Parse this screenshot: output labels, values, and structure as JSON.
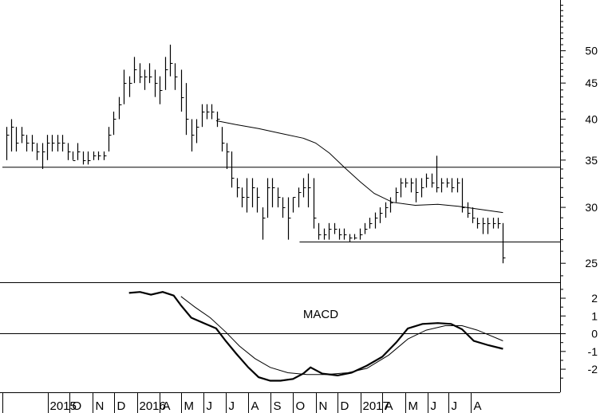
{
  "chart_data": [
    {
      "type": "ohlc",
      "title": "",
      "y_scale": "log",
      "ylim": [
        23.5,
        59
      ],
      "y_ticks": [
        25,
        30,
        35,
        40,
        45,
        50
      ],
      "x_start": "2015-07-01",
      "x_end": "2017-08-01",
      "weekly_hlc": [
        [
          "2015-07-06",
          39,
          35,
          38
        ],
        [
          "2015-07-13",
          40,
          36,
          39
        ],
        [
          "2015-07-20",
          39,
          36,
          37
        ],
        [
          "2015-07-27",
          39,
          37,
          38
        ],
        [
          "2015-08-03",
          38,
          36,
          37
        ],
        [
          "2015-08-10",
          38,
          36,
          37
        ],
        [
          "2015-08-17",
          37,
          35,
          36
        ],
        [
          "2015-08-24",
          37,
          34,
          36
        ],
        [
          "2015-08-31",
          38,
          35,
          37
        ],
        [
          "2015-09-07",
          38,
          36,
          37
        ],
        [
          "2015-09-14",
          38,
          36,
          37
        ],
        [
          "2015-09-21",
          38,
          36,
          37
        ],
        [
          "2015-09-28",
          37,
          35,
          36
        ],
        [
          "2015-10-05",
          36,
          35,
          35
        ],
        [
          "2015-10-12",
          37,
          35,
          36
        ],
        [
          "2015-10-19",
          36,
          34.5,
          35
        ],
        [
          "2015-10-26",
          36,
          34.5,
          35
        ],
        [
          "2015-11-02",
          36,
          35,
          35.5
        ],
        [
          "2015-11-09",
          36,
          35,
          35.5
        ],
        [
          "2015-11-16",
          36,
          35,
          35.5
        ],
        [
          "2015-11-23",
          39,
          36,
          38
        ],
        [
          "2015-11-30",
          41,
          38,
          40
        ],
        [
          "2015-12-07",
          43,
          40,
          42
        ],
        [
          "2015-12-14",
          47,
          42,
          45
        ],
        [
          "2015-12-21",
          46,
          43,
          45
        ],
        [
          "2015-12-28",
          49,
          45,
          47
        ],
        [
          "2016-01-04",
          48,
          45,
          46
        ],
        [
          "2016-01-11",
          47,
          44,
          46
        ],
        [
          "2016-01-18",
          48,
          45,
          46
        ],
        [
          "2016-01-25",
          47,
          43,
          45
        ],
        [
          "2016-02-01",
          46,
          42,
          44
        ],
        [
          "2016-02-08",
          49,
          44,
          47
        ],
        [
          "2016-02-15",
          51,
          46,
          48
        ],
        [
          "2016-02-22",
          48,
          44,
          46
        ],
        [
          "2016-03-01",
          47,
          41,
          43
        ],
        [
          "2016-03-08",
          45,
          38,
          40
        ],
        [
          "2016-03-15",
          40,
          36,
          38
        ],
        [
          "2016-03-22",
          40,
          37,
          39
        ],
        [
          "2016-03-29",
          42,
          39,
          41
        ],
        [
          "2016-04-05",
          42,
          40,
          41
        ],
        [
          "2016-04-12",
          42,
          40,
          41
        ],
        [
          "2016-04-19",
          41,
          39,
          40
        ],
        [
          "2016-04-26",
          39,
          36,
          37
        ],
        [
          "2016-05-02",
          37,
          34,
          36
        ],
        [
          "2016-05-09",
          36,
          32,
          33
        ],
        [
          "2016-05-16",
          33,
          31,
          32
        ],
        [
          "2016-05-23",
          32,
          30,
          31
        ],
        [
          "2016-05-30",
          33,
          29.5,
          31
        ],
        [
          "2016-06-06",
          33,
          30,
          32
        ],
        [
          "2016-06-13",
          32,
          29.5,
          31
        ],
        [
          "2016-06-20",
          30,
          27,
          29
        ],
        [
          "2016-06-27",
          33,
          29,
          32
        ],
        [
          "2016-07-04",
          33,
          30,
          32
        ],
        [
          "2016-07-11",
          32,
          30,
          31
        ],
        [
          "2016-07-18",
          31,
          29,
          30
        ],
        [
          "2016-07-25",
          31,
          27,
          29
        ],
        [
          "2016-08-01",
          31,
          29.5,
          31
        ],
        [
          "2016-08-08",
          32,
          30,
          31.5
        ],
        [
          "2016-08-15",
          33,
          31,
          32
        ],
        [
          "2016-08-22",
          33.5,
          30,
          32
        ],
        [
          "2016-08-29",
          33,
          28,
          29
        ],
        [
          "2016-09-05",
          28.5,
          27,
          27.5
        ],
        [
          "2016-09-12",
          28,
          27,
          27.5
        ],
        [
          "2016-09-19",
          28.5,
          27,
          28
        ],
        [
          "2016-09-26",
          28.5,
          27.5,
          28
        ],
        [
          "2016-10-03",
          28,
          27,
          27.5
        ],
        [
          "2016-10-10",
          28,
          27,
          27.5
        ],
        [
          "2016-10-17",
          27.5,
          26.8,
          27.2
        ],
        [
          "2016-10-24",
          27.5,
          27,
          27.2
        ],
        [
          "2016-10-31",
          28,
          27,
          27.5
        ],
        [
          "2016-11-07",
          28.5,
          27.5,
          28
        ],
        [
          "2016-11-14",
          29,
          28,
          28.5
        ],
        [
          "2016-11-21",
          29.5,
          28,
          29
        ],
        [
          "2016-11-28",
          30,
          28.5,
          29.5
        ],
        [
          "2016-12-05",
          30.5,
          29,
          30
        ],
        [
          "2016-12-12",
          31,
          29.5,
          30.5
        ],
        [
          "2016-12-19",
          32,
          30.5,
          31.5
        ],
        [
          "2016-12-26",
          33,
          31,
          32.5
        ],
        [
          "2017-01-02",
          33,
          32,
          32.5
        ],
        [
          "2017-01-09",
          33,
          31.5,
          32.5
        ],
        [
          "2017-01-16",
          33,
          30.5,
          31.5
        ],
        [
          "2017-01-23",
          33,
          31,
          32
        ],
        [
          "2017-01-30",
          33.5,
          32,
          33
        ],
        [
          "2017-02-06",
          33.5,
          32,
          32.5
        ],
        [
          "2017-02-13",
          35.5,
          31.5,
          32
        ],
        [
          "2017-02-20",
          33,
          31.5,
          32.5
        ],
        [
          "2017-02-27",
          33,
          32,
          32.5
        ],
        [
          "2017-03-06",
          33,
          31.5,
          32
        ],
        [
          "2017-03-13",
          33,
          31.5,
          32.5
        ],
        [
          "2017-03-20",
          33,
          29.5,
          30
        ],
        [
          "2017-03-27",
          30.5,
          29,
          29.5
        ],
        [
          "2017-04-03",
          30,
          28.5,
          29
        ],
        [
          "2017-04-10",
          29,
          28,
          28.5
        ],
        [
          "2017-04-17",
          29,
          27.5,
          28.5
        ],
        [
          "2017-04-24",
          29,
          27.5,
          28.5
        ],
        [
          "2017-05-01",
          29,
          28,
          28.5
        ],
        [
          "2017-05-08",
          29,
          28,
          28.5
        ],
        [
          "2017-05-15",
          28.5,
          25,
          25.5
        ]
      ],
      "moving_average": [
        [
          "2016-04-18",
          39.8
        ],
        [
          "2016-05-15",
          39.3
        ],
        [
          "2016-06-15",
          38.8
        ],
        [
          "2016-07-15",
          38.2
        ],
        [
          "2016-08-15",
          37.6
        ],
        [
          "2016-09-01",
          37
        ],
        [
          "2016-09-20",
          35.8
        ],
        [
          "2016-10-10",
          34.2
        ],
        [
          "2016-11-01",
          32.6
        ],
        [
          "2016-11-20",
          31.4
        ],
        [
          "2016-12-15",
          30.5
        ],
        [
          "2017-01-15",
          30.2
        ],
        [
          "2017-02-15",
          30.3
        ],
        [
          "2017-03-15",
          30.1
        ],
        [
          "2017-04-15",
          29.8
        ],
        [
          "2017-05-15",
          29.5
        ]
      ],
      "horizontal_lines": [
        {
          "y": 34.2,
          "from": "2015-07-01",
          "to": "2017-08-01"
        },
        {
          "y": 26.8,
          "from": "2016-08-10",
          "to": "2017-08-01"
        }
      ]
    },
    {
      "type": "line",
      "label": "MACD",
      "ylim": [
        -3.3,
        2.9
      ],
      "y_ticks": [
        -2,
        -1,
        0,
        1,
        2
      ],
      "zero_line": true,
      "series": [
        {
          "points": [
            [
              "2015-12-21",
              2.3
            ],
            [
              "2016-01-05",
              2.35
            ],
            [
              "2016-01-20",
              2.2
            ],
            [
              "2016-02-05",
              2.35
            ],
            [
              "2016-02-20",
              2.15
            ],
            [
              "2016-03-01",
              1.6
            ],
            [
              "2016-03-15",
              0.9
            ],
            [
              "2016-04-01",
              0.6
            ],
            [
              "2016-04-18",
              0.3
            ],
            [
              "2016-05-01",
              -0.4
            ],
            [
              "2016-05-15",
              -1.1
            ],
            [
              "2016-06-01",
              -1.9
            ],
            [
              "2016-06-15",
              -2.45
            ],
            [
              "2016-07-01",
              -2.65
            ],
            [
              "2016-07-15",
              -2.65
            ],
            [
              "2016-08-01",
              -2.55
            ],
            [
              "2016-08-15",
              -2.25
            ],
            [
              "2016-08-25",
              -1.9
            ],
            [
              "2016-09-10",
              -2.25
            ],
            [
              "2016-10-01",
              -2.35
            ],
            [
              "2016-10-20",
              -2.2
            ],
            [
              "2016-11-10",
              -1.8
            ],
            [
              "2016-12-01",
              -1.3
            ],
            [
              "2016-12-20",
              -0.5
            ],
            [
              "2017-01-05",
              0.3
            ],
            [
              "2017-01-25",
              0.55
            ],
            [
              "2017-02-15",
              0.6
            ],
            [
              "2017-03-05",
              0.55
            ],
            [
              "2017-03-20",
              0.25
            ],
            [
              "2017-04-05",
              -0.4
            ],
            [
              "2017-04-25",
              -0.65
            ],
            [
              "2017-05-15",
              -0.85
            ]
          ]
        },
        {
          "points": [
            [
              "2016-03-01",
              2.1
            ],
            [
              "2016-03-20",
              1.5
            ],
            [
              "2016-04-10",
              0.9
            ],
            [
              "2016-05-01",
              0.1
            ],
            [
              "2016-05-20",
              -0.7
            ],
            [
              "2016-06-10",
              -1.4
            ],
            [
              "2016-07-01",
              -1.9
            ],
            [
              "2016-07-25",
              -2.2
            ],
            [
              "2016-08-20",
              -2.3
            ],
            [
              "2016-09-15",
              -2.3
            ],
            [
              "2016-10-15",
              -2.2
            ],
            [
              "2016-11-10",
              -1.95
            ],
            [
              "2016-12-10",
              -1.2
            ],
            [
              "2017-01-05",
              -0.3
            ],
            [
              "2017-01-30",
              0.2
            ],
            [
              "2017-02-25",
              0.45
            ],
            [
              "2017-03-20",
              0.45
            ],
            [
              "2017-04-10",
              0.2
            ],
            [
              "2017-05-15",
              -0.4
            ]
          ]
        }
      ]
    }
  ],
  "x_axis_labels": [
    "2015",
    "O",
    "N",
    "D",
    "2016",
    "A",
    "M",
    "J",
    "J",
    "A",
    "S",
    "O",
    "N",
    "D",
    "2017",
    "A",
    "M",
    "J",
    "J",
    "A"
  ],
  "macd_label": "MACD"
}
